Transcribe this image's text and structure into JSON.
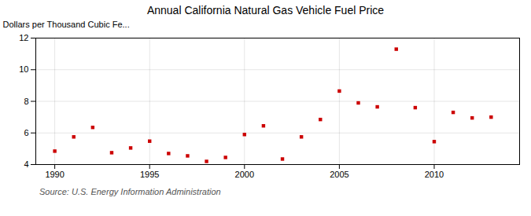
{
  "chart_data": {
    "type": "scatter",
    "title": "Annual California Natural Gas Vehicle Fuel Price",
    "ylabel": "Dollars per Thousand Cubic Fe...",
    "annotations": [
      "Source: U.S. Energy Information Administration"
    ],
    "x": [
      1990,
      1991,
      1992,
      1993,
      1994,
      1995,
      1996,
      1997,
      1998,
      1999,
      2000,
      2001,
      2002,
      2003,
      2004,
      2005,
      2006,
      2007,
      2008,
      2009,
      2010,
      2011,
      2012,
      2013
    ],
    "values": [
      4.85,
      5.75,
      6.35,
      4.75,
      5.05,
      5.48,
      4.7,
      4.55,
      4.2,
      4.45,
      5.9,
      6.45,
      4.35,
      5.75,
      6.85,
      8.65,
      7.9,
      7.65,
      11.3,
      7.6,
      5.45,
      7.3,
      6.95,
      7.0
    ],
    "color": "#cc0000",
    "marker": "square",
    "xlim": [
      1989.0,
      2014.5
    ],
    "xticks": [
      1990,
      1995,
      2000,
      2005,
      2010
    ],
    "ylim": [
      4,
      12
    ],
    "yticks": [
      4,
      6,
      8,
      10,
      12
    ],
    "grid": true
  }
}
